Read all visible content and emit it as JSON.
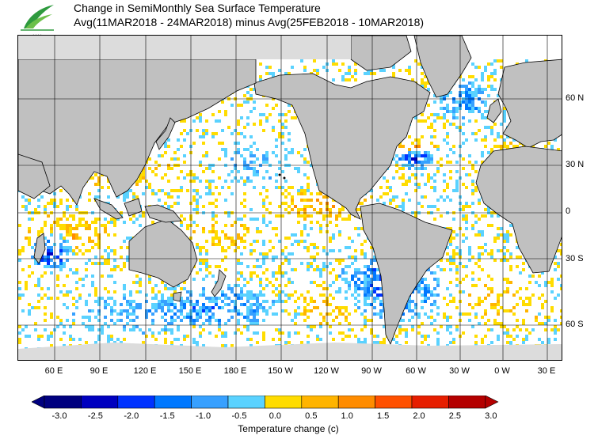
{
  "header": {
    "title_line1": "Change in SemiMonthly Sea Surface Temperature",
    "title_line2": "Avg(11MAR2018 - 24MAR2018) minus Avg(25FEB2018 - 10MAR2018)"
  },
  "map": {
    "lat_labels": [
      "60 N",
      "30 N",
      "0",
      "30 S",
      "60 S"
    ],
    "lon_labels": [
      "60 E",
      "90 E",
      "120 E",
      "150 E",
      "180 E",
      "150 W",
      "120 W",
      "90 W",
      "60 W",
      "30 W",
      "0 W",
      "30 E"
    ],
    "colors": {
      "land": "#c0c0c0",
      "ice": "#dcdcdc",
      "ocean_neutral": "#ffffff",
      "grid": "#000000"
    }
  },
  "colorbar": {
    "title": "Temperature change  (c)",
    "tick_labels": [
      "-3.0",
      "-2.5",
      "-2.0",
      "-1.5",
      "-1.0",
      "-0.5",
      "0.0",
      "0.5",
      "1.0",
      "1.5",
      "2.0",
      "2.5",
      "3.0"
    ],
    "colors": [
      "#00007f",
      "#0000bf",
      "#0032ff",
      "#0078ff",
      "#37a0ff",
      "#5ad2ff",
      "#ffffff",
      "#ffdc00",
      "#ffb400",
      "#ff8c00",
      "#ff5000",
      "#e61e00",
      "#b40000"
    ]
  }
}
